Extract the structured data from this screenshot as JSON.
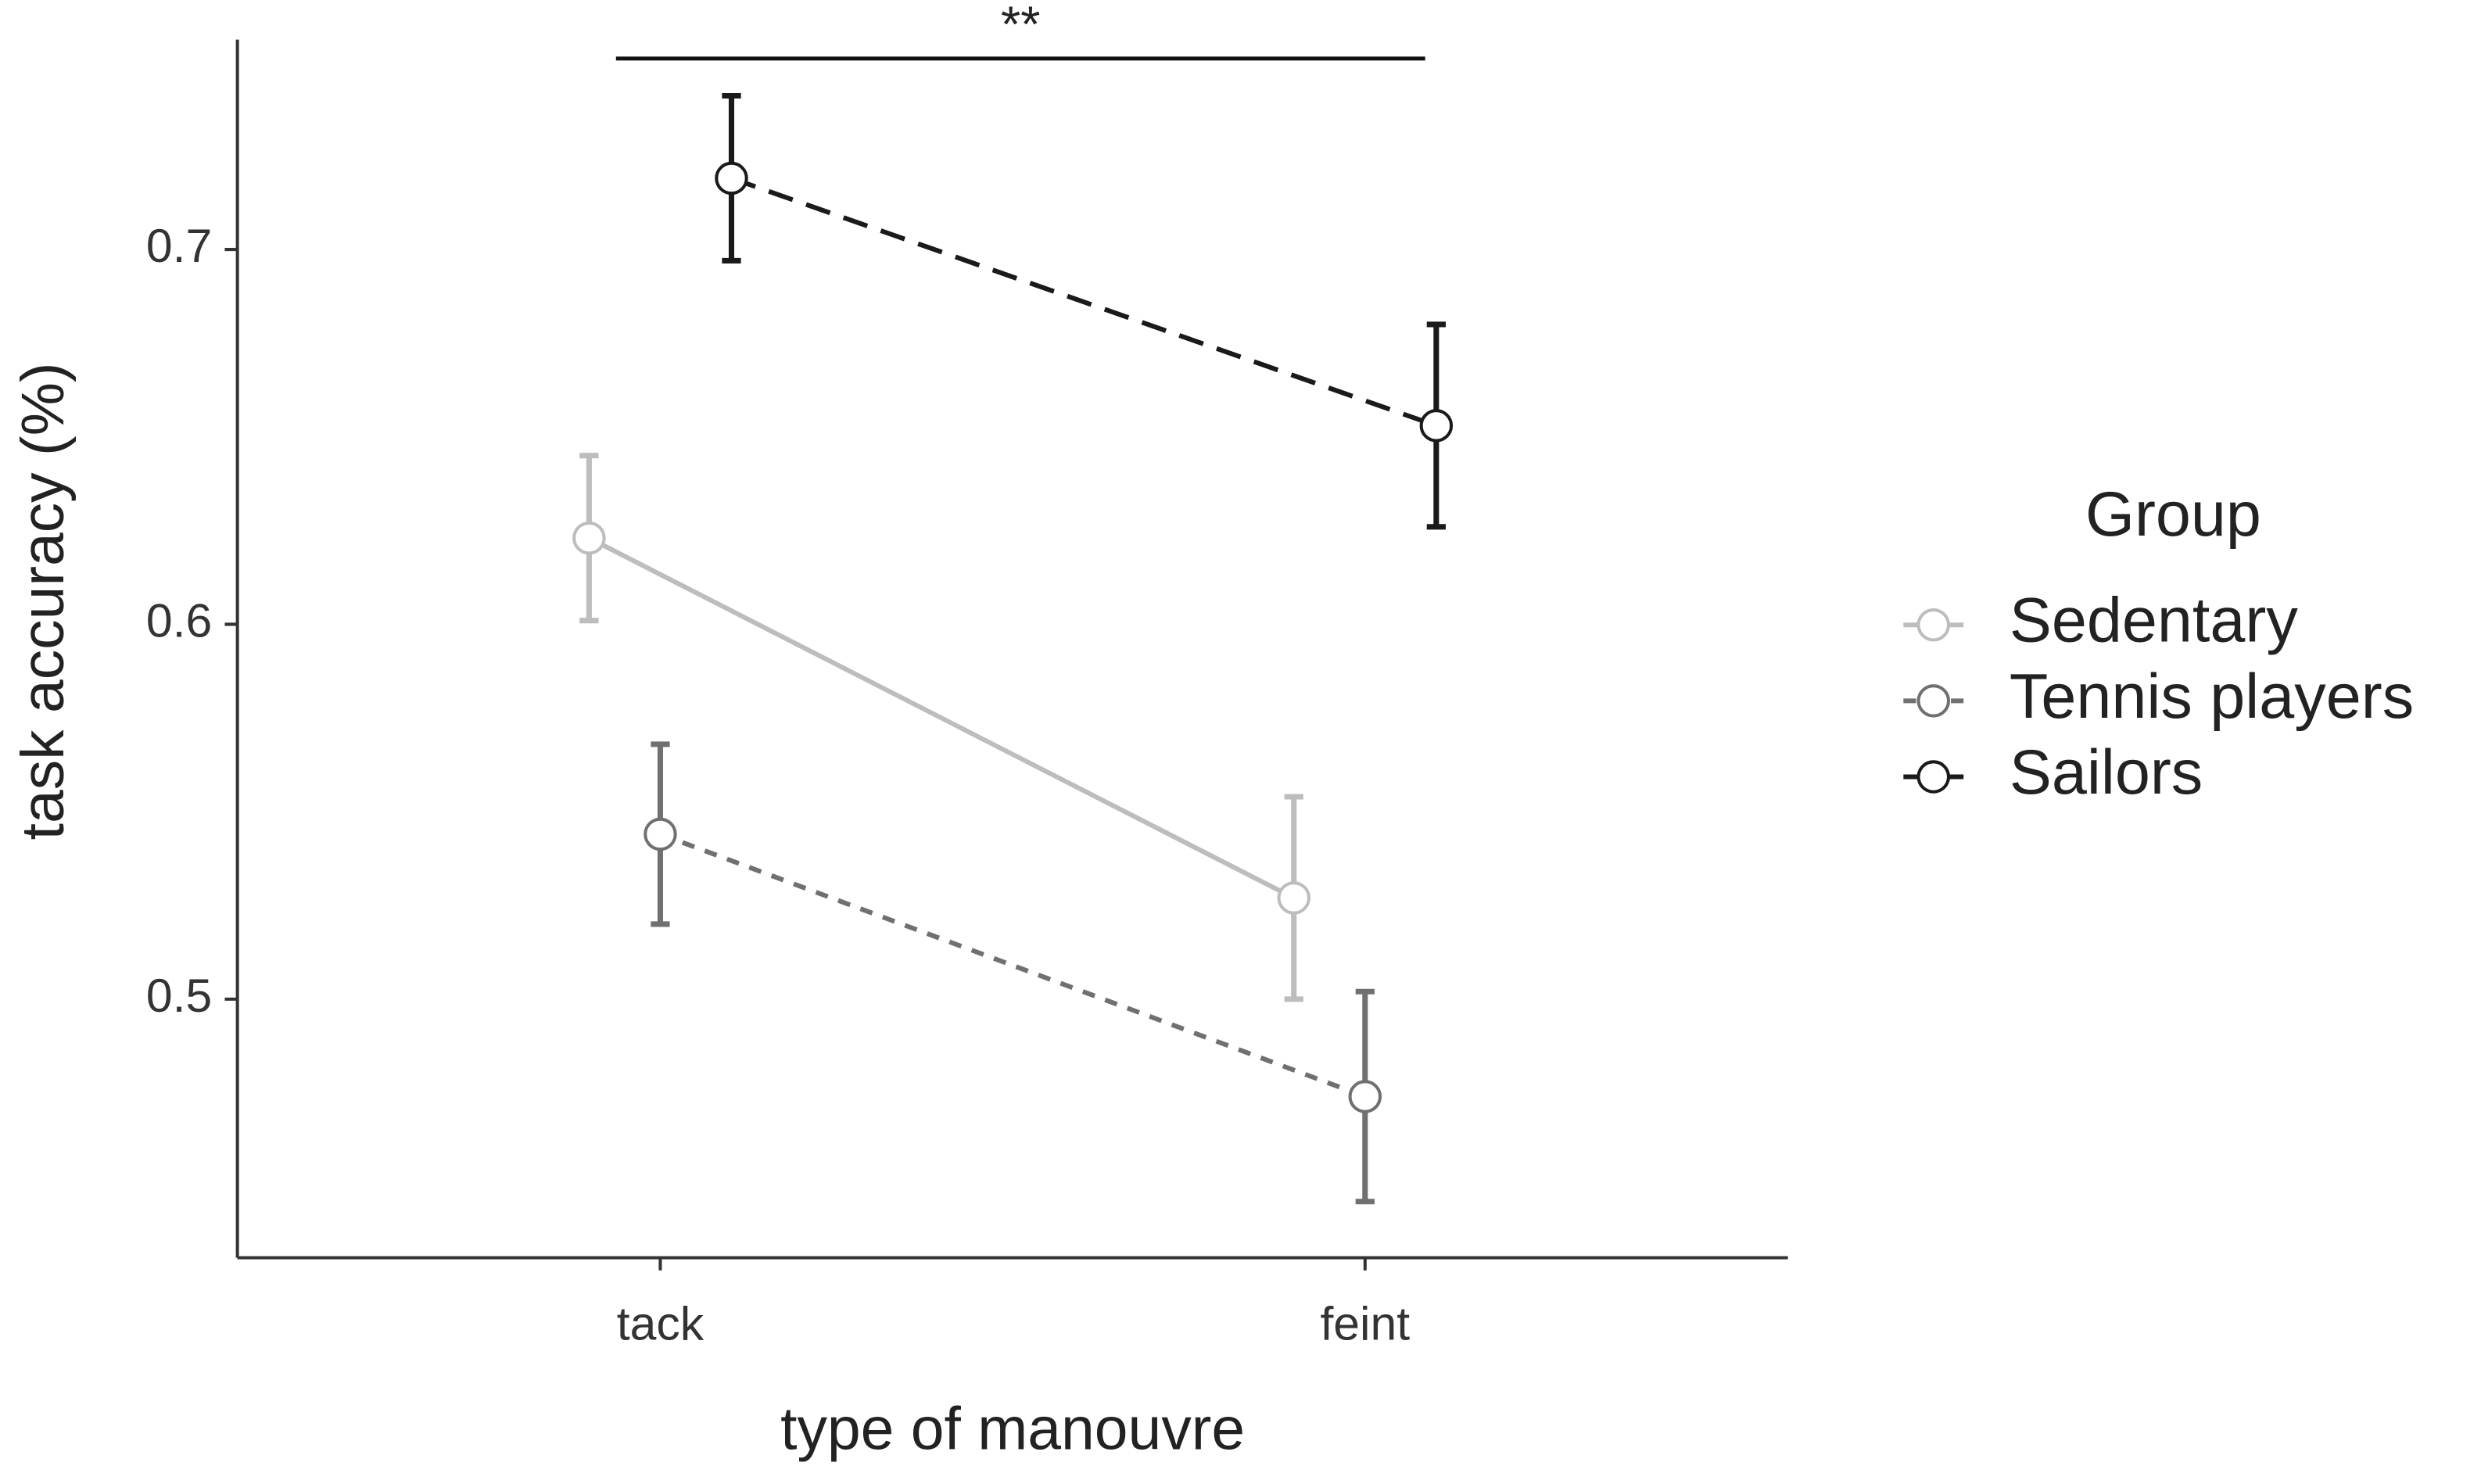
{
  "chart_data": {
    "type": "line",
    "xlabel": "type of manouvre",
    "ylabel": "task accuracy (%)",
    "categories": [
      "tack",
      "feint"
    ],
    "ylim": [
      0.431,
      0.756
    ],
    "yticks": [
      0.5,
      0.6,
      0.7
    ],
    "legend_title": "Group",
    "legend_position": "right",
    "annotation": "**",
    "series": [
      {
        "name": "Sedentary",
        "color": "#bdbdbd",
        "dash": "solid",
        "values": [
          0.623,
          0.527
        ],
        "errors": [
          0.022,
          0.027
        ]
      },
      {
        "name": "Tennis players",
        "color": "#707070",
        "dash": "dotted",
        "values": [
          0.544,
          0.474
        ],
        "errors": [
          0.024,
          0.028
        ]
      },
      {
        "name": "Sailors",
        "color": "#1a1a1a",
        "dash": "dashed",
        "values": [
          0.719,
          0.653
        ],
        "errors": [
          0.022,
          0.027
        ]
      }
    ]
  }
}
